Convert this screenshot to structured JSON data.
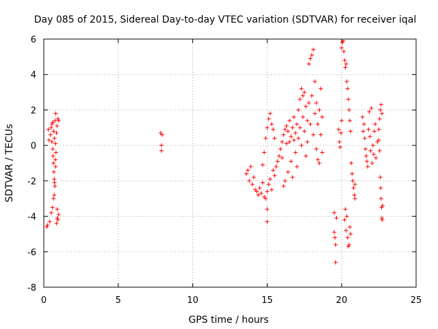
{
  "chart_data": {
    "type": "scatter",
    "title": "Day 085 of 2015, Sidereal Day-to-day VTEC variation (SDTVAR) for receiver iqal",
    "xlabel": "GPS time / hours",
    "ylabel": "SDTVAR / TECUs",
    "xlim": [
      0,
      25
    ],
    "ylim": [
      -8,
      6
    ],
    "x_ticks": [
      0,
      5,
      10,
      15,
      20,
      25
    ],
    "y_ticks": [
      -8,
      -6,
      -4,
      -2,
      0,
      2,
      4,
      6
    ],
    "x_tick_labels": [
      "0",
      "5",
      "10",
      "15",
      "20",
      "25"
    ],
    "y_tick_labels": [
      "-8",
      "-6",
      "-4",
      "-2",
      "0",
      "2",
      "4",
      "6"
    ],
    "grid": true,
    "legend": "none",
    "marker": "plus",
    "color": "#ff0000",
    "points": [
      [
        0.2,
        -4.6
      ],
      [
        0.25,
        -4.5
      ],
      [
        0.3,
        0.9
      ],
      [
        0.35,
        0.3
      ],
      [
        0.4,
        -4.3
      ],
      [
        0.45,
        0.6
      ],
      [
        0.5,
        1.0
      ],
      [
        0.5,
        -3.8
      ],
      [
        0.55,
        1.2
      ],
      [
        0.55,
        0.2
      ],
      [
        0.58,
        -3.5
      ],
      [
        0.6,
        1.3
      ],
      [
        0.6,
        -0.2
      ],
      [
        0.62,
        -0.6
      ],
      [
        0.65,
        -1.0
      ],
      [
        0.65,
        -3.0
      ],
      [
        0.68,
        -1.5
      ],
      [
        0.7,
        -1.9
      ],
      [
        0.7,
        -2.8
      ],
      [
        0.72,
        -2.1
      ],
      [
        0.75,
        1.4
      ],
      [
        0.75,
        -2.3
      ],
      [
        0.78,
        -0.8
      ],
      [
        0.8,
        -1.2
      ],
      [
        0.8,
        1.8
      ],
      [
        0.82,
        -0.4
      ],
      [
        0.85,
        0.7
      ],
      [
        0.85,
        -4.4
      ],
      [
        0.88,
        1.1
      ],
      [
        0.9,
        -4.1
      ],
      [
        0.9,
        -3.6
      ],
      [
        0.95,
        1.5
      ],
      [
        0.95,
        -4.2
      ],
      [
        1.0,
        1.4
      ],
      [
        1.0,
        -3.9
      ],
      [
        0.72,
        0.4
      ],
      [
        0.66,
        0.8
      ],
      [
        0.78,
        0.1
      ],
      [
        7.85,
        0.7
      ],
      [
        7.9,
        0.0
      ],
      [
        7.9,
        -0.3
      ],
      [
        7.95,
        0.6
      ],
      [
        13.6,
        -1.6
      ],
      [
        13.7,
        -1.4
      ],
      [
        13.8,
        -2.0
      ],
      [
        13.9,
        -1.2
      ],
      [
        14.0,
        -2.2
      ],
      [
        14.1,
        -1.8
      ],
      [
        14.2,
        -2.5
      ],
      [
        14.3,
        -2.6
      ],
      [
        14.4,
        -2.8
      ],
      [
        14.5,
        -2.4
      ],
      [
        14.6,
        -2.7
      ],
      [
        14.7,
        -2.1
      ],
      [
        14.7,
        -1.1
      ],
      [
        14.8,
        -2.9
      ],
      [
        14.8,
        -0.4
      ],
      [
        14.9,
        -3.0
      ],
      [
        14.9,
        0.4
      ],
      [
        15.0,
        -2.6
      ],
      [
        15.0,
        -3.6
      ],
      [
        15.0,
        -4.3
      ],
      [
        15.0,
        1.0
      ],
      [
        15.1,
        -2.2
      ],
      [
        15.1,
        1.5
      ],
      [
        15.2,
        -1.9
      ],
      [
        15.2,
        1.8
      ],
      [
        15.3,
        -2.5
      ],
      [
        15.3,
        1.2
      ],
      [
        15.4,
        -1.4
      ],
      [
        15.4,
        0.9
      ],
      [
        15.5,
        -1.7
      ],
      [
        15.5,
        0.4
      ],
      [
        15.6,
        -1.2
      ],
      [
        15.7,
        -0.9
      ],
      [
        15.8,
        -0.6
      ],
      [
        15.9,
        -0.2
      ],
      [
        16.0,
        0.2
      ],
      [
        16.0,
        -0.7
      ],
      [
        16.1,
        0.6
      ],
      [
        16.1,
        -2.3
      ],
      [
        16.2,
        0.9
      ],
      [
        16.2,
        -2.0
      ],
      [
        16.3,
        1.1
      ],
      [
        16.3,
        0.1
      ],
      [
        16.4,
        0.8
      ],
      [
        16.4,
        -1.5
      ],
      [
        16.5,
        1.4
      ],
      [
        16.5,
        0.2
      ],
      [
        16.6,
        0.5
      ],
      [
        16.6,
        -0.9
      ],
      [
        16.7,
        1.0
      ],
      [
        16.7,
        -1.8
      ],
      [
        16.8,
        0.3
      ],
      [
        16.8,
        1.6
      ],
      [
        16.9,
        0.7
      ],
      [
        16.9,
        -0.4
      ],
      [
        17.0,
        1.2
      ],
      [
        17.0,
        -1.2
      ],
      [
        17.1,
        2.0
      ],
      [
        17.1,
        0.4
      ],
      [
        17.2,
        2.6
      ],
      [
        17.2,
        1.0
      ],
      [
        17.3,
        3.2
      ],
      [
        17.3,
        0.0
      ],
      [
        17.4,
        2.8
      ],
      [
        17.4,
        1.6
      ],
      [
        17.5,
        3.0
      ],
      [
        17.5,
        0.8
      ],
      [
        17.6,
        2.2
      ],
      [
        17.6,
        -0.6
      ],
      [
        17.7,
        1.4
      ],
      [
        17.7,
        0.2
      ],
      [
        17.8,
        2.4
      ],
      [
        17.8,
        4.6
      ],
      [
        17.9,
        4.9
      ],
      [
        17.9,
        1.2
      ],
      [
        18.0,
        5.1
      ],
      [
        18.0,
        2.8
      ],
      [
        18.1,
        5.4
      ],
      [
        18.1,
        0.6
      ],
      [
        18.2,
        3.6
      ],
      [
        18.2,
        1.8
      ],
      [
        18.3,
        2.4
      ],
      [
        18.3,
        -0.2
      ],
      [
        18.4,
        1.2
      ],
      [
        18.4,
        -0.8
      ],
      [
        18.5,
        2.0
      ],
      [
        18.5,
        -1.0
      ],
      [
        18.6,
        0.6
      ],
      [
        18.6,
        3.2
      ],
      [
        18.7,
        1.6
      ],
      [
        18.7,
        -0.4
      ],
      [
        19.5,
        -3.8
      ],
      [
        19.5,
        -4.9
      ],
      [
        19.55,
        -5.2
      ],
      [
        19.6,
        -5.6
      ],
      [
        19.6,
        -6.6
      ],
      [
        19.65,
        -4.1
      ],
      [
        19.8,
        0.9
      ],
      [
        19.85,
        0.2
      ],
      [
        19.9,
        -0.1
      ],
      [
        19.95,
        0.7
      ],
      [
        20.0,
        1.4
      ],
      [
        20.0,
        5.5
      ],
      [
        20.05,
        5.8
      ],
      [
        20.1,
        5.9
      ],
      [
        20.15,
        5.3
      ],
      [
        20.2,
        4.8
      ],
      [
        20.2,
        -4.2
      ],
      [
        20.25,
        4.4
      ],
      [
        20.3,
        4.6
      ],
      [
        20.3,
        -4.8
      ],
      [
        20.35,
        3.6
      ],
      [
        20.4,
        3.2
      ],
      [
        20.4,
        -5.2
      ],
      [
        20.45,
        2.6
      ],
      [
        20.5,
        2.0
      ],
      [
        20.5,
        -5.6
      ],
      [
        20.55,
        1.4
      ],
      [
        20.55,
        -4.6
      ],
      [
        20.6,
        0.8
      ],
      [
        20.6,
        -5.0
      ],
      [
        20.65,
        -1.0
      ],
      [
        20.7,
        -1.6
      ],
      [
        20.75,
        -2.0
      ],
      [
        20.8,
        -2.4
      ],
      [
        20.85,
        -2.8
      ],
      [
        20.9,
        -3.0
      ],
      [
        20.9,
        -2.2
      ],
      [
        20.35,
        -4.0
      ],
      [
        20.45,
        -5.7
      ],
      [
        20.25,
        -3.6
      ],
      [
        21.4,
        1.6
      ],
      [
        21.45,
        0.8
      ],
      [
        21.5,
        1.2
      ],
      [
        21.55,
        0.4
      ],
      [
        21.6,
        -0.2
      ],
      [
        21.65,
        -0.6
      ],
      [
        21.7,
        -0.9
      ],
      [
        21.75,
        -1.2
      ],
      [
        21.8,
        0.9
      ],
      [
        21.85,
        1.9
      ],
      [
        21.9,
        0.5
      ],
      [
        21.95,
        -0.3
      ],
      [
        22.0,
        2.1
      ],
      [
        22.05,
        -1.0
      ],
      [
        22.1,
        0.0
      ],
      [
        22.15,
        -0.5
      ],
      [
        22.2,
        0.8
      ],
      [
        22.25,
        1.2
      ],
      [
        22.3,
        -0.7
      ],
      [
        22.4,
        0.2
      ],
      [
        22.5,
        0.9
      ],
      [
        22.55,
        1.5
      ],
      [
        22.6,
        2.0
      ],
      [
        22.65,
        2.3
      ],
      [
        22.7,
        1.8
      ],
      [
        22.6,
        -1.8
      ],
      [
        22.62,
        -2.4
      ],
      [
        22.65,
        -3.0
      ],
      [
        22.68,
        -3.5
      ],
      [
        22.7,
        -4.1
      ],
      [
        22.72,
        -4.2
      ],
      [
        22.75,
        -3.4
      ],
      [
        22.5,
        0.3
      ],
      [
        22.55,
        -0.3
      ]
    ]
  }
}
